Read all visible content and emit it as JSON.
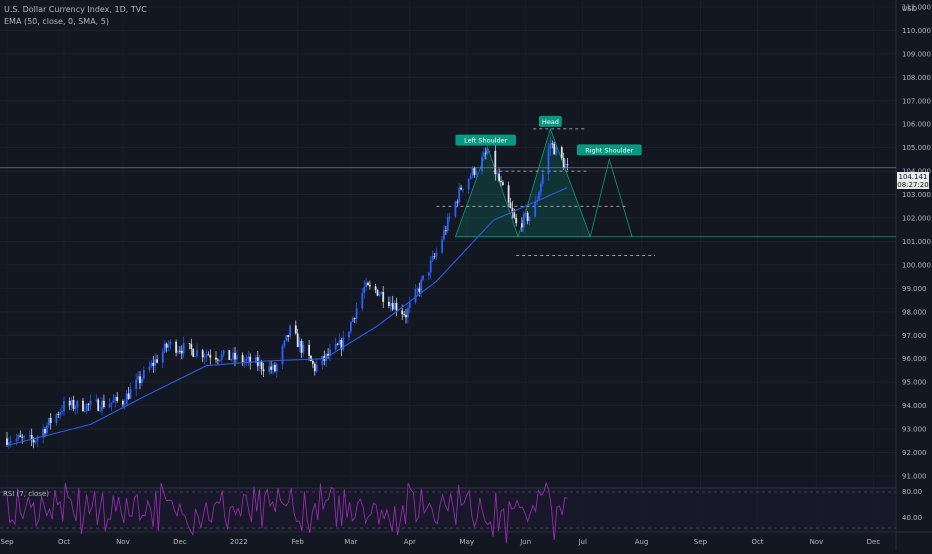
{
  "header": {
    "symbol_line": "U.S. Dollar Currency Index, 1D, TVC",
    "indicator_line": "EMA (50, close, 0, SMA, 5)",
    "currency": "USD"
  },
  "price_axis": {
    "ticks": [
      "111.000",
      "110.000",
      "109.000",
      "108.000",
      "107.000",
      "106.000",
      "105.000",
      "104.000",
      "103.000",
      "102.000",
      "101.000",
      "100.000",
      "99.000",
      "98.000",
      "97.000",
      "96.000",
      "95.000",
      "94.000",
      "93.000",
      "92.000",
      "91.000"
    ],
    "current_price": "104.141",
    "countdown": "08:27:20"
  },
  "time_axis": {
    "labels": [
      "Sep",
      "Oct",
      "Nov",
      "Dec",
      "2022",
      "Feb",
      "Mar",
      "Apr",
      "May",
      "Jun",
      "Jul",
      "Aug",
      "Sep",
      "Oct",
      "Nov",
      "Dec"
    ]
  },
  "rsi_panel": {
    "title": "RSI (7, close)",
    "levels": [
      "80.00",
      "40.00"
    ]
  },
  "annotations": {
    "left_shoulder": "Left Shoulder",
    "head": "Head",
    "right_shoulder": "Right Shoulder"
  },
  "colors": {
    "background": "#131722",
    "candle_up": "#2962ff",
    "candle_down": "#e0e3eb",
    "ema": "#2b5ce0",
    "rsi": "#8e2fa8",
    "pattern": "#0f9a7a",
    "label_bg": "#089981",
    "axis_text": "#b2b5be"
  },
  "chart_data": {
    "type": "candlestick",
    "symbol": "U.S. Dollar Currency Index",
    "interval": "1D",
    "ylim": [
      91,
      111.5
    ],
    "price_path": [
      [
        "2021-09-01",
        92.6
      ],
      [
        "2021-09-15",
        92.5
      ],
      [
        "2021-10-01",
        94.0
      ],
      [
        "2021-10-15",
        94.0
      ],
      [
        "2021-11-01",
        94.2
      ],
      [
        "2021-11-15",
        95.6
      ],
      [
        "2021-11-25",
        96.6
      ],
      [
        "2021-12-10",
        96.3
      ],
      [
        "2021-12-30",
        96.0
      ],
      [
        "2022-01-10",
        95.8
      ],
      [
        "2022-01-20",
        95.5
      ],
      [
        "2022-01-28",
        97.2
      ],
      [
        "2022-02-10",
        95.6
      ],
      [
        "2022-02-25",
        96.7
      ],
      [
        "2022-03-08",
        99.0
      ],
      [
        "2022-03-15",
        98.9
      ],
      [
        "2022-03-30",
        97.9
      ],
      [
        "2022-04-15",
        100.5
      ],
      [
        "2022-04-28",
        103.3
      ],
      [
        "2022-05-12",
        104.8
      ],
      [
        "2022-05-27",
        101.7
      ],
      [
        "2022-06-05",
        102.2
      ],
      [
        "2022-06-14",
        105.2
      ],
      [
        "2022-06-23",
        104.1
      ]
    ],
    "ema_50_path": [
      [
        "2021-09-01",
        92.3
      ],
      [
        "2021-10-15",
        93.2
      ],
      [
        "2021-11-15",
        94.5
      ],
      [
        "2021-12-15",
        95.7
      ],
      [
        "2022-01-15",
        95.9
      ],
      [
        "2022-02-15",
        96.0
      ],
      [
        "2022-03-15",
        97.4
      ],
      [
        "2022-04-15",
        99.3
      ],
      [
        "2022-05-15",
        101.9
      ],
      [
        "2022-06-23",
        103.3
      ]
    ],
    "current_price": 104.141,
    "head_and_shoulders": {
      "neckline": 101.2,
      "left_shoulder_peak": [
        "2022-05-12",
        105.0
      ],
      "head_peak": [
        "2022-06-14",
        105.8
      ],
      "projected_right_shoulder": [
        "2022-07-15",
        104.5
      ],
      "dashed_levels": [
        105.8,
        104.0,
        102.5,
        100.4
      ]
    },
    "rsi": {
      "period": 7,
      "upper": 80,
      "lower": 40
    }
  }
}
